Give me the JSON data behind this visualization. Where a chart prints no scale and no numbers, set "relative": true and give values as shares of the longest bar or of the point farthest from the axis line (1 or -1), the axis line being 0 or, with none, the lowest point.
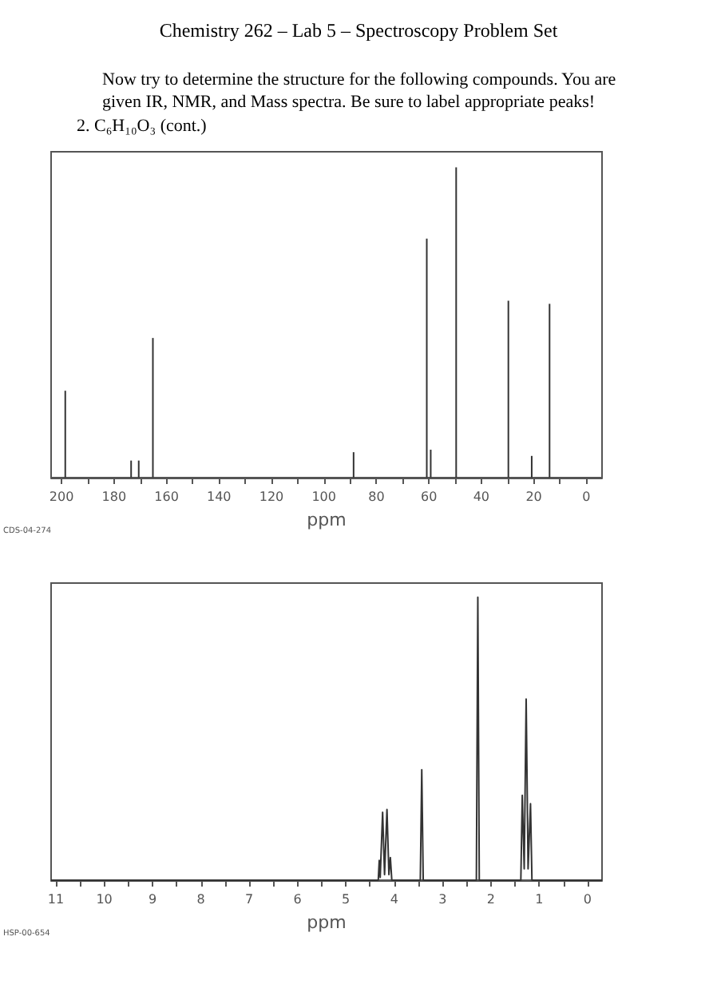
{
  "chart_data": [
    {
      "type": "bar",
      "title": "Chemistry 262 – Lab 5 – Spectroscopy Problem Set",
      "subtitle": "Now try to determine the structure for the following compounds. You are given IR, NMR, and Mass spectra. Be sure to label appropriate peaks!",
      "annotations": [
        "2. C₆H₁₀O₃ (cont.)",
        "CDS-04-274"
      ],
      "relative": true,
      "color": "#333333",
      "x": [
        198.6,
        173.5,
        170.6,
        165.2,
        88.7,
        60.8,
        59.3,
        49.6,
        29.7,
        20.8,
        14.0
      ],
      "values": [
        0.28,
        0.055,
        0.055,
        0.45,
        0.082,
        0.77,
        0.09,
        1,
        0.57,
        0.07,
        0.56
      ],
      "xlim": [
        204,
        -6
      ],
      "xticks": [
        200,
        {
          "value": 190,
          "label": null
        },
        180,
        {
          "value": 170,
          "label": null
        },
        160,
        {
          "value": 150,
          "label": null
        },
        140,
        {
          "value": 130,
          "label": null
        },
        120,
        {
          "value": 110,
          "label": null
        },
        100,
        {
          "value": 90,
          "label": null
        },
        80,
        {
          "value": 70,
          "label": null
        },
        60,
        {
          "value": 50,
          "label": null
        },
        40,
        {
          "value": 30,
          "label": null
        },
        20,
        {
          "value": 10,
          "label": null
        },
        0
      ],
      "xlabel": "ppm"
    },
    {
      "type": "line",
      "annotations": [
        "HSP-00-654"
      ],
      "relative": true,
      "color": "#333333",
      "x": [
        11.1,
        4.33,
        4.31,
        4.29,
        4.24,
        4.2,
        4.15,
        4.11,
        4.08,
        4.05,
        3.46,
        3.43,
        3.4,
        2.3,
        2.27,
        2.24,
        1.38,
        1.35,
        1.31,
        1.27,
        1.23,
        1.18,
        1.15,
        -0.3
      ],
      "values": [
        0,
        0,
        0.07,
        0.01,
        0.24,
        0.02,
        0.25,
        0.02,
        0.08,
        0,
        0,
        0.39,
        0,
        0,
        1,
        0,
        0,
        0.3,
        0.04,
        0.64,
        0.04,
        0.27,
        0,
        0
      ],
      "xlim": [
        11.1,
        -0.3
      ],
      "xticks": [
        11,
        {
          "value": 10.5,
          "label": null
        },
        10,
        {
          "value": 9.5,
          "label": null
        },
        9,
        {
          "value": 8.5,
          "label": null
        },
        8,
        {
          "value": 7.5,
          "label": null
        },
        7,
        {
          "value": 6.5,
          "label": null
        },
        6,
        {
          "value": 5.5,
          "label": null
        },
        5,
        {
          "value": 4.5,
          "label": null
        },
        4,
        {
          "value": 3.5,
          "label": null
        },
        3,
        {
          "value": 2.5,
          "label": null
        },
        2,
        {
          "value": 1.5,
          "label": null
        },
        1,
        {
          "value": 0.5,
          "label": null
        },
        0
      ],
      "xlabel": "ppm"
    }
  ]
}
